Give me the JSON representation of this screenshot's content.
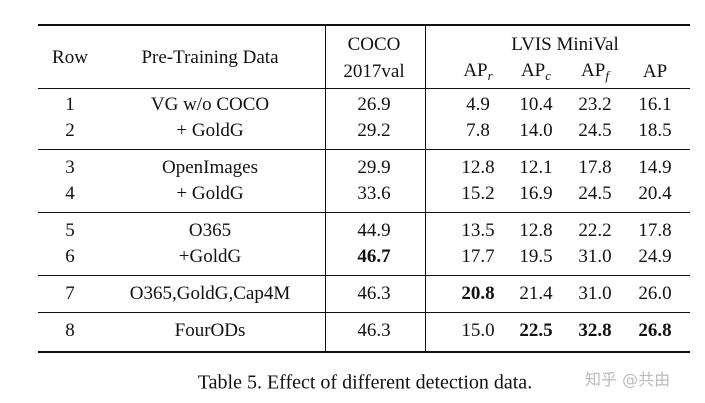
{
  "table": {
    "header": {
      "row": "Row",
      "data": "Pre-Training Data",
      "coco": [
        "COCO",
        "2017val"
      ],
      "lvis": "LVIS MiniVal",
      "metrics": [
        {
          "main": "AP",
          "sub": "r"
        },
        {
          "main": "AP",
          "sub": "c"
        },
        {
          "main": "AP",
          "sub": "f"
        },
        {
          "main": "AP"
        }
      ]
    },
    "groups": [
      [
        {
          "cells": [
            "1",
            "VG w/o COCO",
            "26.9",
            "4.9",
            "10.4",
            "23.2",
            "16.1"
          ]
        },
        {
          "cells": [
            "2",
            "+ GoldG",
            "29.2",
            "7.8",
            "14.0",
            "24.5",
            "18.5"
          ]
        }
      ],
      [
        {
          "cells": [
            "3",
            "OpenImages",
            "29.9",
            "12.8",
            "12.1",
            "17.8",
            "14.9"
          ]
        },
        {
          "cells": [
            "4",
            "+ GoldG",
            "33.6",
            "15.2",
            "16.9",
            "24.5",
            "20.4"
          ]
        }
      ],
      [
        {
          "cells": [
            "5",
            "O365",
            "44.9",
            "13.5",
            "12.8",
            "22.2",
            "17.8"
          ]
        },
        {
          "cells": [
            "6",
            "+GoldG",
            "46.7",
            "17.7",
            "19.5",
            "31.0",
            "24.9"
          ],
          "bold": [
            2
          ]
        }
      ],
      [
        {
          "cells": [
            "7",
            "O365,GoldG,Cap4M",
            "46.3",
            "20.8",
            "21.4",
            "31.0",
            "26.0"
          ],
          "bold": [
            3
          ]
        }
      ],
      [
        {
          "cells": [
            "8",
            "FourODs",
            "46.3",
            "15.0",
            "22.5",
            "32.8",
            "26.8"
          ],
          "bold": [
            4,
            5,
            6
          ]
        }
      ]
    ],
    "caption": "Table 5. Effect of different detection data.",
    "watermark": "知乎 @共由"
  }
}
